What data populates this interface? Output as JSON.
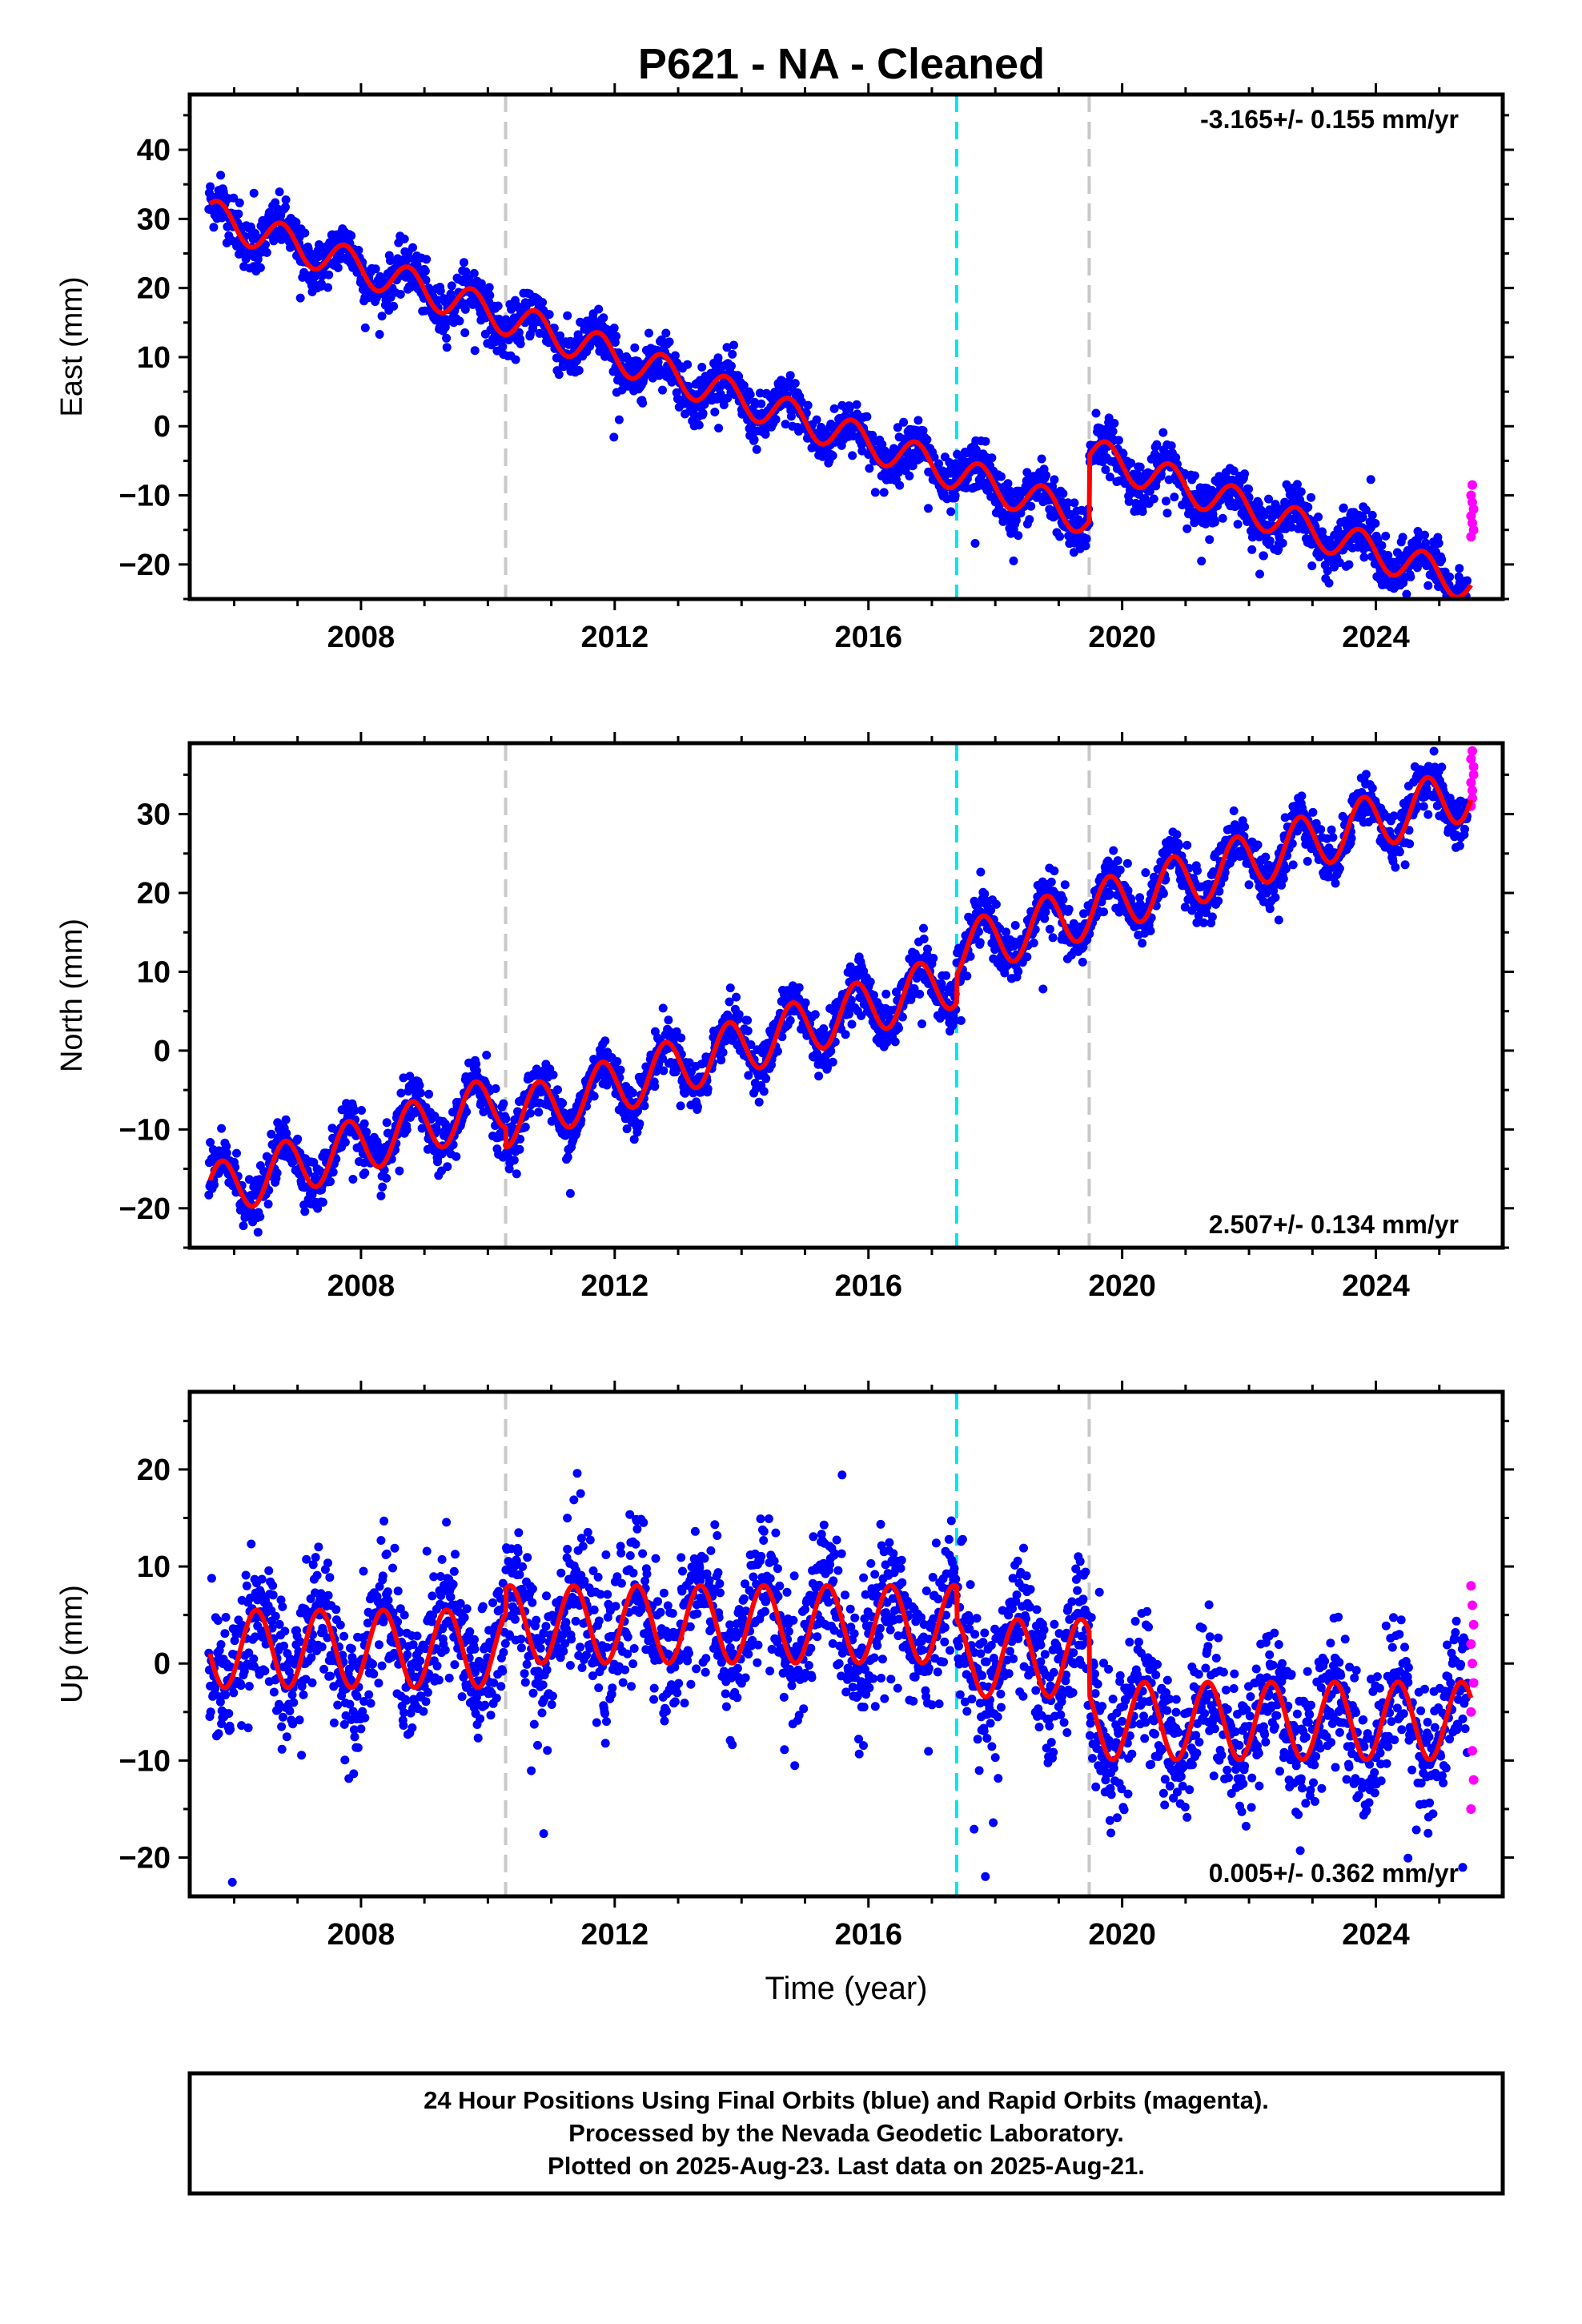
{
  "title": "P621  - NA - Cleaned",
  "colors": {
    "final": "#0000ff",
    "rapid": "#ff00ff",
    "model": "#ff0000",
    "break_gray": "#c8c8c8",
    "break_cyan": "#00e5ee"
  },
  "chart_data": [
    {
      "type": "scatter",
      "component": "East",
      "ylabel": "East (mm)",
      "xlabel": "",
      "rate_text": "-3.165+/- 0.155 mm/yr",
      "rate_position": "top-right",
      "xlim": [
        2005.3,
        2026.0
      ],
      "ylim": [
        -25,
        48
      ],
      "xticks": [
        2008,
        2012,
        2016,
        2020,
        2024
      ],
      "yticks": [
        -20,
        -10,
        0,
        10,
        20,
        30,
        40
      ],
      "breaks": [
        {
          "x": 2010.28,
          "color": "gray"
        },
        {
          "x": 2017.39,
          "color": "cyan"
        },
        {
          "x": 2019.48,
          "color": "gray"
        }
      ],
      "model": {
        "trend_mm_per_yr": -3.165,
        "y_at_start": 30.5,
        "amp_mm": 2.5,
        "phase_yr": 0.5,
        "offsets": [
          {
            "x": 2019.48,
            "dy": 9.5
          }
        ]
      },
      "scatter_sigma": 1.8,
      "rapid_points": [
        -16,
        -14,
        -12,
        -10,
        -8.5,
        -15,
        -13,
        -11
      ],
      "y_at_end": -19
    },
    {
      "type": "scatter",
      "component": "North",
      "ylabel": "North (mm)",
      "xlabel": "",
      "rate_text": "2.507+/- 0.134 mm/yr",
      "rate_position": "bottom-right",
      "xlim": [
        2005.3,
        2026.0
      ],
      "ylim": [
        -25,
        39
      ],
      "xticks": [
        2008,
        2012,
        2016,
        2020,
        2024
      ],
      "yticks": [
        -20,
        -10,
        0,
        10,
        20,
        30
      ],
      "breaks": [
        {
          "x": 2010.28,
          "color": "gray"
        },
        {
          "x": 2017.39,
          "color": "cyan"
        },
        {
          "x": 2019.48,
          "color": "gray"
        }
      ],
      "model": {
        "trend_mm_per_yr": 2.507,
        "y_at_start": -18,
        "amp_mm": 3.5,
        "phase_yr": 0.55,
        "offsets": [
          {
            "x": 2010.28,
            "dy": -2.5
          },
          {
            "x": 2017.39,
            "dy": 3.5
          }
        ]
      },
      "scatter_sigma": 1.6,
      "rapid_points": [
        31,
        33,
        35,
        37,
        38,
        36,
        34,
        32
      ],
      "y_at_end": 32
    },
    {
      "type": "scatter",
      "component": "Up",
      "ylabel": "Up (mm)",
      "xlabel": "Time (year)",
      "rate_text": "0.005+/- 0.362 mm/yr",
      "rate_position": "bottom-right",
      "xlim": [
        2005.3,
        2026.0
      ],
      "ylim": [
        -24,
        28
      ],
      "xticks": [
        2008,
        2012,
        2016,
        2020,
        2024
      ],
      "yticks": [
        -20,
        -10,
        0,
        10,
        20
      ],
      "breaks": [
        {
          "x": 2010.28,
          "color": "gray"
        },
        {
          "x": 2017.39,
          "color": "cyan"
        },
        {
          "x": 2019.48,
          "color": "gray"
        }
      ],
      "model": {
        "trend_mm_per_yr": 0.005,
        "y_at_start": 1.5,
        "amp_mm": 4.0,
        "phase_yr": 0.1,
        "offsets": [
          {
            "x": 2010.28,
            "dy": 2.5
          },
          {
            "x": 2017.39,
            "dy": -3.5
          },
          {
            "x": 2019.48,
            "dy": -6.5
          }
        ]
      },
      "scatter_sigma": 3.5,
      "rapid_points": [
        8,
        6,
        4,
        2,
        0,
        -2,
        -5,
        -9,
        -12,
        -15
      ],
      "y_at_end": -5
    }
  ],
  "footer": {
    "line1": "24 Hour Positions Using Final Orbits (blue) and Rapid Orbits (magenta).",
    "line2": "Processed by the Nevada Geodetic Laboratory.",
    "line3": "Plotted on 2025-Aug-23. Last data on 2025-Aug-21."
  }
}
